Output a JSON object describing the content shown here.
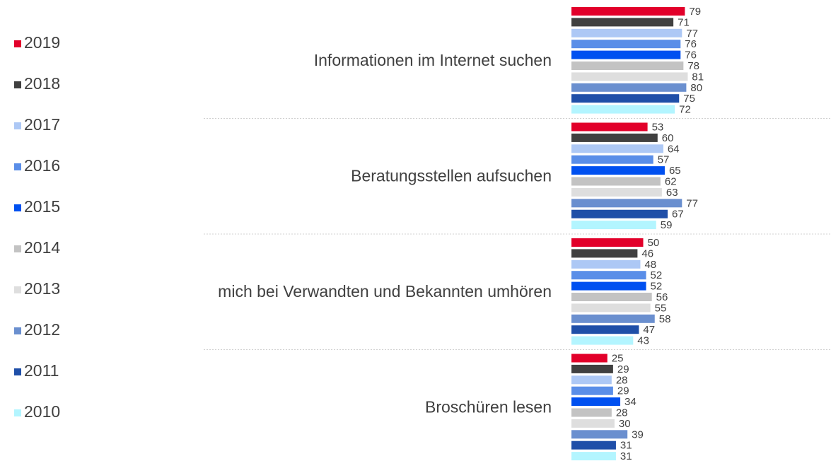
{
  "chart_data": {
    "type": "bar",
    "orientation": "horizontal",
    "categories": [
      "Informationen im Internet suchen",
      "Beratungsstellen aufsuchen",
      "mich bei Verwandten und Bekannten umhören",
      "Broschüren lesen"
    ],
    "series": [
      {
        "name": "2019",
        "color": "#e2002a",
        "values": [
          79,
          53,
          50,
          25
        ]
      },
      {
        "name": "2018",
        "color": "#404040",
        "values": [
          71,
          60,
          46,
          29
        ]
      },
      {
        "name": "2017",
        "color": "#adc8f5",
        "values": [
          77,
          64,
          48,
          28
        ]
      },
      {
        "name": "2016",
        "color": "#5a8ee8",
        "values": [
          76,
          57,
          52,
          29
        ]
      },
      {
        "name": "2015",
        "color": "#0050f0",
        "values": [
          76,
          65,
          52,
          34
        ]
      },
      {
        "name": "2014",
        "color": "#c3c3c3",
        "values": [
          78,
          62,
          56,
          28
        ]
      },
      {
        "name": "2013",
        "color": "#dedede",
        "values": [
          81,
          63,
          55,
          30
        ]
      },
      {
        "name": "2012",
        "color": "#6a8fcf",
        "values": [
          80,
          77,
          58,
          39
        ]
      },
      {
        "name": "2011",
        "color": "#1f4fa8",
        "values": [
          75,
          67,
          47,
          31
        ]
      },
      {
        "name": "2010",
        "color": "#b3f5ff",
        "values": [
          72,
          59,
          43,
          31
        ]
      }
    ],
    "legend": "left"
  }
}
